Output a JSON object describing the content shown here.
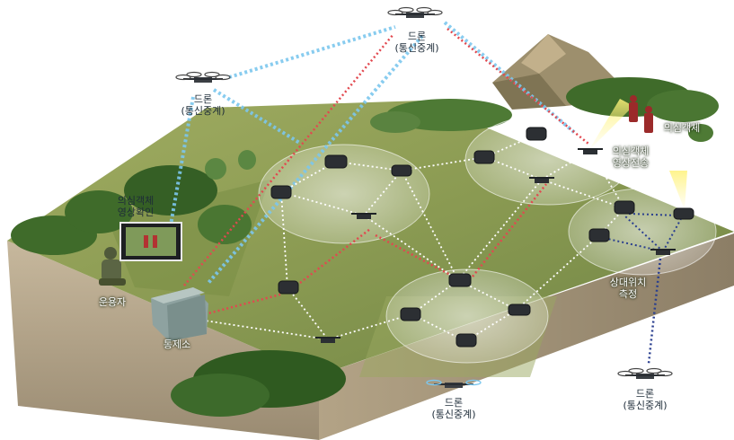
{
  "labels": {
    "drone_top": {
      "line1": "드론",
      "line2": "(통신중계)"
    },
    "drone_left": {
      "line1": "드론",
      "line2": "(통신중계)"
    },
    "drone_bottom_center": {
      "line1": "드론",
      "line2": "(통신중계)"
    },
    "drone_bottom_right": {
      "line1": "드론",
      "line2": "(통신중계)"
    },
    "video_check": {
      "line1": "의심객체",
      "line2": "영상확인"
    },
    "operator": "운용자",
    "control_station": "통제소",
    "suspect_object": "의심객체",
    "video_transmit": {
      "line1": "의심객체",
      "line2": "영상전송"
    },
    "relative_position": {
      "line1": "상대위치",
      "line2": "측정"
    }
  },
  "colors": {
    "relay_link": "#7cc7ee",
    "control_link": "#e2484f",
    "mesh_link": "#ffffff",
    "position_link": "#2a3f8f",
    "terrain": "#8e9a55",
    "soil": "#b6a68b"
  }
}
